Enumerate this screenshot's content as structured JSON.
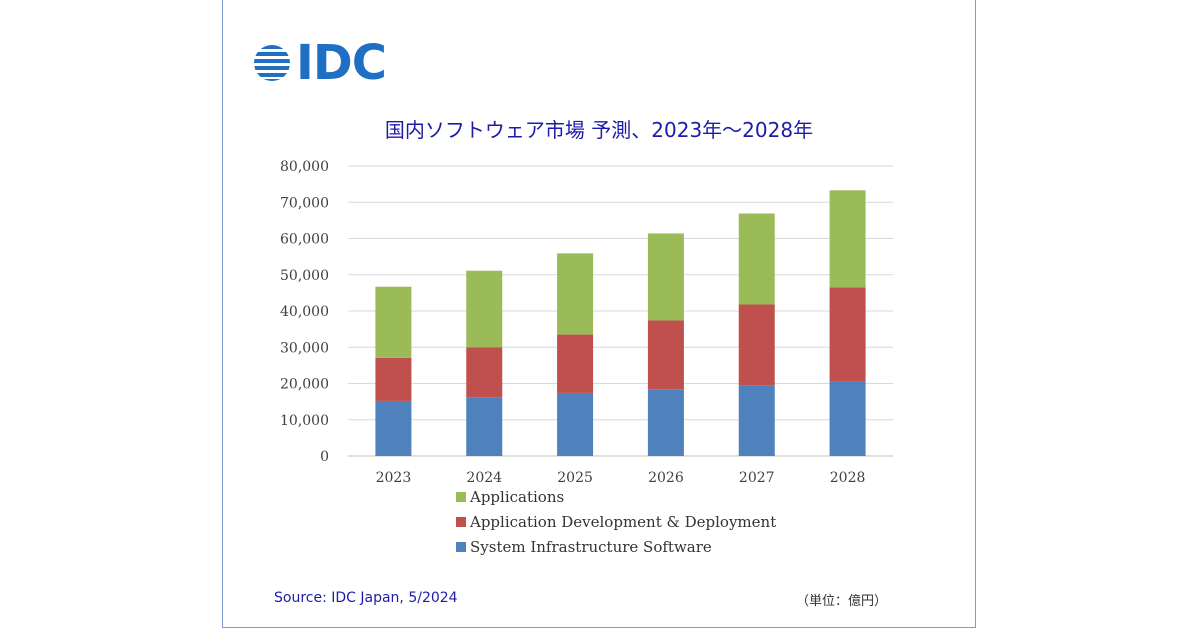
{
  "logo": {
    "text": "IDC",
    "color": "#1f6fc5"
  },
  "title": "国内ソフトウェア市場 予測、2023年～2028年",
  "source": "Source: IDC Japan, 5/2024",
  "unit_note": "（単位：億円）",
  "chart_data": {
    "type": "bar",
    "stacked": true,
    "title": "国内ソフトウェア市場 予測、2023年～2028年",
    "categories": [
      "2023",
      "2024",
      "2025",
      "2026",
      "2027",
      "2028"
    ],
    "series": [
      {
        "name": "System Infrastructure Software",
        "color": "#4f81bd",
        "values": [
          15200,
          16200,
          17400,
          18400,
          19500,
          20500
        ]
      },
      {
        "name": "Application Development & Deployment",
        "color": "#c0504d",
        "values": [
          11900,
          13800,
          16100,
          19000,
          22300,
          26000
        ]
      },
      {
        "name": "Applications",
        "color": "#9bbb59",
        "values": [
          19600,
          21100,
          22400,
          24000,
          25100,
          26800
        ]
      }
    ],
    "legend_order": [
      "Applications",
      "Application Development & Deployment",
      "System Infrastructure Software"
    ],
    "ylim": [
      0,
      80000
    ],
    "yticks": [
      "0",
      "10,000",
      "20,000",
      "30,000",
      "40,000",
      "50,000",
      "60,000",
      "70,000",
      "80,000"
    ],
    "grid": true,
    "legend_position": "bottom"
  }
}
